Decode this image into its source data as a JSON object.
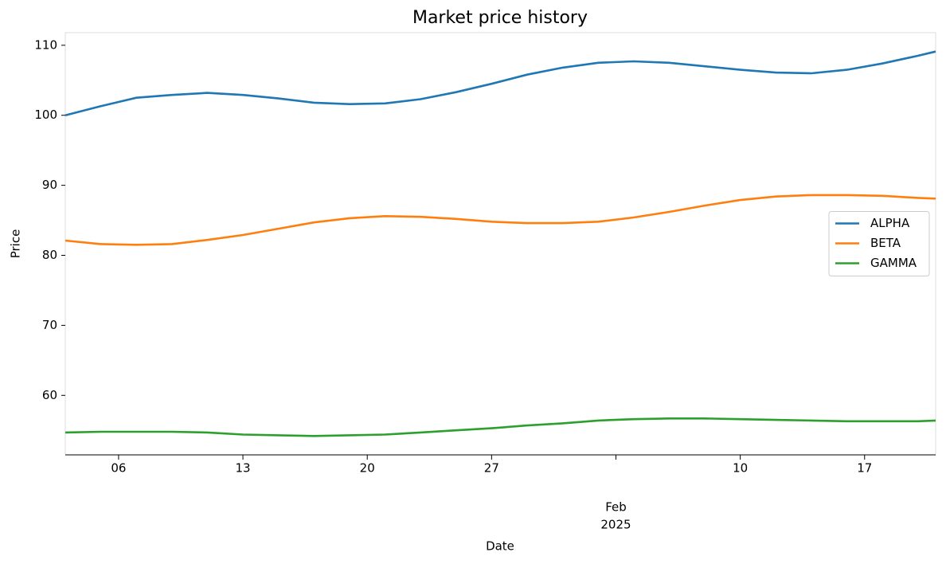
{
  "chart_data": {
    "type": "line",
    "title": "Market price history",
    "x_label": "Date",
    "y_label": "Price",
    "x": [
      "2025-01-03",
      "2025-01-05",
      "2025-01-07",
      "2025-01-09",
      "2025-01-11",
      "2025-01-13",
      "2025-01-15",
      "2025-01-17",
      "2025-01-19",
      "2025-01-21",
      "2025-01-23",
      "2025-01-25",
      "2025-01-27",
      "2025-01-29",
      "2025-01-31",
      "2025-02-02",
      "2025-02-04",
      "2025-02-06",
      "2025-02-08",
      "2025-02-10",
      "2025-02-12",
      "2025-02-14",
      "2025-02-16",
      "2025-02-18",
      "2025-02-20",
      "2025-02-21"
    ],
    "series": [
      {
        "name": "ALPHA",
        "color": "#1f77b4",
        "values": [
          100.0,
          101.3,
          102.5,
          102.9,
          103.2,
          102.9,
          102.4,
          101.8,
          101.6,
          101.7,
          102.3,
          103.3,
          104.5,
          105.8,
          106.8,
          107.5,
          107.7,
          107.5,
          107.0,
          106.5,
          106.1,
          106.0,
          106.5,
          107.4,
          108.5,
          109.1
        ]
      },
      {
        "name": "BETA",
        "color": "#ff7f0e",
        "values": [
          82.1,
          81.6,
          81.5,
          81.6,
          82.2,
          82.9,
          83.8,
          84.7,
          85.3,
          85.6,
          85.5,
          85.2,
          84.8,
          84.6,
          84.6,
          84.8,
          85.4,
          86.2,
          87.1,
          87.9,
          88.4,
          88.6,
          88.6,
          88.5,
          88.2,
          88.1
        ]
      },
      {
        "name": "GAMMA",
        "color": "#2ca02c",
        "values": [
          54.7,
          54.8,
          54.8,
          54.8,
          54.7,
          54.4,
          54.3,
          54.2,
          54.3,
          54.4,
          54.7,
          55.0,
          55.3,
          55.7,
          56.0,
          56.4,
          56.6,
          56.7,
          56.7,
          56.6,
          56.5,
          56.4,
          56.3,
          56.3,
          56.3,
          56.4
        ]
      }
    ],
    "xlim": [
      "2025-01-03",
      "2025-02-21"
    ],
    "xticks": [
      {
        "value": "2025-01-06",
        "label": "06"
      },
      {
        "value": "2025-01-13",
        "label": "13"
      },
      {
        "value": "2025-01-20",
        "label": "20"
      },
      {
        "value": "2025-01-27",
        "label": "27"
      },
      {
        "value": "2025-02-03",
        "label": "Feb",
        "sublabel": "2025"
      },
      {
        "value": "2025-02-10",
        "label": "10"
      },
      {
        "value": "2025-02-17",
        "label": "17"
      }
    ],
    "ylim": [
      51.5,
      111.8
    ],
    "yticks": [
      60,
      70,
      80,
      90,
      100,
      110
    ],
    "legend": "center right",
    "grid": false
  }
}
